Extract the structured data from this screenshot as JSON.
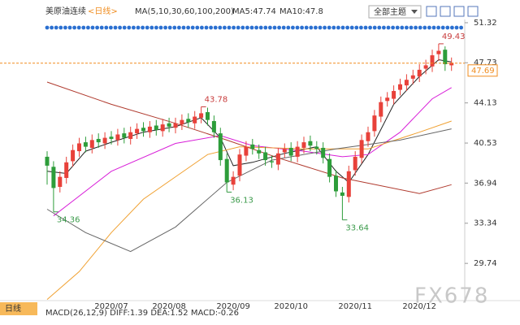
{
  "chart_data": {
    "type": "candlestick",
    "header": {
      "instrument": "美原油连续",
      "period": "<日线>",
      "ma_params": "MA(5,10,30,60,100,200)",
      "ma5": "MA5:47.74",
      "ma10": "MA10:47.8",
      "theme_button": "全部主题"
    },
    "footer": {
      "tab": "日线",
      "macd": "MACD(26,12,9) DIFF:1.39 DEA:1.52 MACD:-0.26"
    },
    "watermark": "FX678",
    "up_color": "#e8413a",
    "down_color": "#2d9d3a",
    "ylim": [
      26.4,
      51.9
    ],
    "yticks": [
      51.32,
      47.73,
      44.13,
      40.53,
      36.94,
      33.34,
      29.74
    ],
    "categories": [
      null,
      null,
      null,
      null,
      null,
      null,
      null,
      null,
      null,
      null,
      "2020/07",
      null,
      null,
      null,
      null,
      null,
      null,
      null,
      null,
      "2020/08",
      null,
      null,
      null,
      null,
      null,
      null,
      null,
      null,
      null,
      "2020/09",
      null,
      null,
      null,
      null,
      null,
      null,
      null,
      null,
      "2020/10",
      null,
      null,
      null,
      null,
      null,
      null,
      null,
      null,
      null,
      "2020/11",
      null,
      null,
      null,
      null,
      null,
      null,
      null,
      null,
      null,
      "2020/12",
      null,
      null,
      null,
      null,
      null
    ],
    "open": [
      39.3,
      38.4,
      36.6,
      37.4,
      38.9,
      39.8,
      40.6,
      40.1,
      40.9,
      40.5,
      41.1,
      40.8,
      41.4,
      40.9,
      41.4,
      41.9,
      41.5,
      42.1,
      41.6,
      42.3,
      41.9,
      42.2,
      42.7,
      42.3,
      42.8,
      43.3,
      42.5,
      41.4,
      39.1,
      36.8,
      37.6,
      39.4,
      40.4,
      39.9,
      39.7,
      38.9,
      38.6,
      39.7,
      40.1,
      39.3,
      40.1,
      40.7,
      40.2,
      40.1,
      39.1,
      37.6,
      36.1,
      35.7,
      38.1,
      39.2,
      40.7,
      41.6,
      42.9,
      44.3,
      44.5,
      45.3,
      45.7,
      46.3,
      46.5,
      47.2,
      47.4,
      48.5,
      48.9,
      47.5
    ],
    "high": [
      39.8,
      38.9,
      38.0,
      39.3,
      40.4,
      41.0,
      41.1,
      41.3,
      41.4,
      41.5,
      41.6,
      41.8,
      41.9,
      42.0,
      42.3,
      42.4,
      42.5,
      42.6,
      42.7,
      42.8,
      42.8,
      43.1,
      43.2,
      43.4,
      43.78,
      43.7,
      43.0,
      41.9,
      39.6,
      38.0,
      40.0,
      40.7,
      40.9,
      40.4,
      40.2,
      39.4,
      40.1,
      40.5,
      40.6,
      40.7,
      41.1,
      41.2,
      40.7,
      40.6,
      39.6,
      38.1,
      36.6,
      38.5,
      39.8,
      41.3,
      42.0,
      43.5,
      44.7,
      45.1,
      45.7,
      46.3,
      46.7,
      47.1,
      47.6,
      48.0,
      48.9,
      49.43,
      49.2,
      48.2
    ],
    "low": [
      36.8,
      34.36,
      36.1,
      36.9,
      38.4,
      39.3,
      39.7,
      39.6,
      40.1,
      40.0,
      40.4,
      40.3,
      40.5,
      40.4,
      40.9,
      41.1,
      41.0,
      41.2,
      41.1,
      41.5,
      41.4,
      41.7,
      41.9,
      41.8,
      42.3,
      42.1,
      41.0,
      38.5,
      36.13,
      36.3,
      37.1,
      38.9,
      39.5,
      39.1,
      38.5,
      38.3,
      38.1,
      39.2,
      38.9,
      38.8,
      39.6,
      39.8,
      39.5,
      38.7,
      37.0,
      35.7,
      33.64,
      35.2,
      37.6,
      38.7,
      40.2,
      41.1,
      42.4,
      43.8,
      44.0,
      44.8,
      45.2,
      45.8,
      46.0,
      46.7,
      46.9,
      47.9,
      47.0,
      47.0
    ],
    "close": [
      38.5,
      36.5,
      37.5,
      38.8,
      39.9,
      40.5,
      40.2,
      40.8,
      40.6,
      41.0,
      40.9,
      41.3,
      41.0,
      41.5,
      41.8,
      41.6,
      42.0,
      41.7,
      42.2,
      42.0,
      42.3,
      42.6,
      42.4,
      42.9,
      43.2,
      42.6,
      41.5,
      39.0,
      37.0,
      37.5,
      39.5,
      40.2,
      40.0,
      39.6,
      39.0,
      38.8,
      39.6,
      40.0,
      39.4,
      40.2,
      40.6,
      40.3,
      40.0,
      39.2,
      37.5,
      36.2,
      35.8,
      38.0,
      39.3,
      40.8,
      41.5,
      43.0,
      44.2,
      44.6,
      45.2,
      45.8,
      46.2,
      46.6,
      47.1,
      47.5,
      48.4,
      48.8,
      47.6,
      47.73
    ],
    "lines": [
      {
        "color": "#222222",
        "x": [
          0,
          3,
          6,
          10,
          15,
          20,
          24,
          27,
          29,
          32,
          37,
          42,
          45,
          47,
          50,
          54,
          58,
          61,
          63
        ],
        "values": [
          38,
          37.8,
          39.8,
          40.6,
          41.5,
          42,
          42.8,
          41,
          38.5,
          38.8,
          39.6,
          40.2,
          38,
          37,
          39.5,
          44,
          46.5,
          48,
          47.8
        ]
      },
      {
        "color": "#d81ed8",
        "x": [
          1,
          10,
          20,
          27,
          32,
          40,
          46,
          50,
          55,
          60,
          63
        ],
        "values": [
          34.0,
          38.0,
          40.5,
          41.2,
          40.3,
          39.8,
          39.3,
          39.5,
          41.5,
          44.5,
          45.5
        ]
      },
      {
        "color": "#f0a030",
        "x": [
          0,
          5,
          10,
          15,
          20,
          25,
          30,
          40,
          50,
          58,
          63
        ],
        "values": [
          26.5,
          29,
          32.5,
          35.5,
          37.5,
          39.5,
          40.2,
          40.0,
          40.0,
          41.5,
          42.5
        ]
      },
      {
        "color": "#666666",
        "x": [
          0,
          6,
          13,
          20,
          28,
          35,
          45,
          55,
          63
        ],
        "values": [
          34.6,
          32.5,
          30.8,
          33,
          37,
          39,
          40,
          40.8,
          41.8
        ]
      },
      {
        "color": "#b03a2e",
        "x": [
          0,
          10,
          20,
          28,
          36,
          46,
          58,
          63
        ],
        "values": [
          46,
          44,
          42.3,
          40.8,
          39.2,
          37.4,
          36.0,
          36.8
        ]
      }
    ],
    "extremes": [
      {
        "index": 24,
        "value": 43.78,
        "color": "#c83c3c"
      },
      {
        "index": 28,
        "value": 36.13,
        "color": "#3a9a4a"
      },
      {
        "index": 1,
        "value": 34.36,
        "color": "#3a9a4a"
      },
      {
        "index": 46,
        "value": 33.64,
        "color": "#3a9a4a"
      },
      {
        "index": 61,
        "value": 49.43,
        "color": "#c83c3c"
      }
    ],
    "last_price": {
      "value": 47.69,
      "color": "#f08c1e"
    }
  }
}
